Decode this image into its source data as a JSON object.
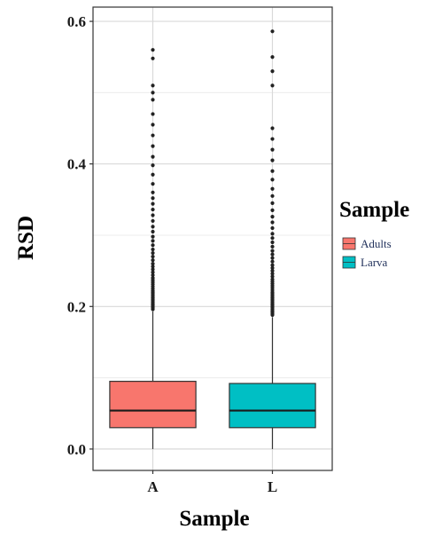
{
  "chart_data": {
    "type": "box",
    "xlabel": "Sample",
    "ylabel": "RSD",
    "ylim": [
      -0.03,
      0.62
    ],
    "yticks": [
      0.0,
      0.2,
      0.4,
      0.6
    ],
    "ytick_labels": [
      "0.0",
      "0.2",
      "0.4",
      "0.6"
    ],
    "grid": true,
    "legend": {
      "title": "Sample",
      "placement": "right",
      "entries": [
        {
          "label": "Adults",
          "color": "#f8766d"
        },
        {
          "label": "Larva",
          "color": "#00bfc4"
        }
      ]
    },
    "categories": [
      "A",
      "L"
    ],
    "series": [
      {
        "name": "Adults",
        "category": "A",
        "color": "#f8766d",
        "min": 0.0,
        "q1": 0.03,
        "median": 0.054,
        "q3": 0.095,
        "max": 0.193,
        "outliers": [
          0.196,
          0.198,
          0.2,
          0.202,
          0.204,
          0.206,
          0.208,
          0.21,
          0.212,
          0.214,
          0.216,
          0.218,
          0.22,
          0.222,
          0.225,
          0.228,
          0.231,
          0.234,
          0.237,
          0.24,
          0.244,
          0.248,
          0.252,
          0.256,
          0.26,
          0.265,
          0.27,
          0.275,
          0.28,
          0.286,
          0.292,
          0.298,
          0.305,
          0.312,
          0.32,
          0.328,
          0.336,
          0.344,
          0.352,
          0.36,
          0.372,
          0.385,
          0.398,
          0.41,
          0.425,
          0.44,
          0.455,
          0.47,
          0.49,
          0.5,
          0.51,
          0.548,
          0.56
        ]
      },
      {
        "name": "Larva",
        "category": "L",
        "color": "#00bfc4",
        "min": 0.0,
        "q1": 0.03,
        "median": 0.054,
        "q3": 0.092,
        "max": 0.185,
        "outliers": [
          0.188,
          0.19,
          0.192,
          0.194,
          0.196,
          0.198,
          0.2,
          0.202,
          0.204,
          0.206,
          0.208,
          0.21,
          0.212,
          0.214,
          0.216,
          0.218,
          0.22,
          0.223,
          0.226,
          0.229,
          0.232,
          0.235,
          0.238,
          0.242,
          0.246,
          0.25,
          0.254,
          0.258,
          0.263,
          0.268,
          0.273,
          0.278,
          0.284,
          0.29,
          0.296,
          0.302,
          0.31,
          0.318,
          0.326,
          0.335,
          0.345,
          0.355,
          0.365,
          0.378,
          0.39,
          0.405,
          0.42,
          0.435,
          0.45,
          0.51,
          0.53,
          0.55,
          0.586
        ]
      }
    ]
  }
}
